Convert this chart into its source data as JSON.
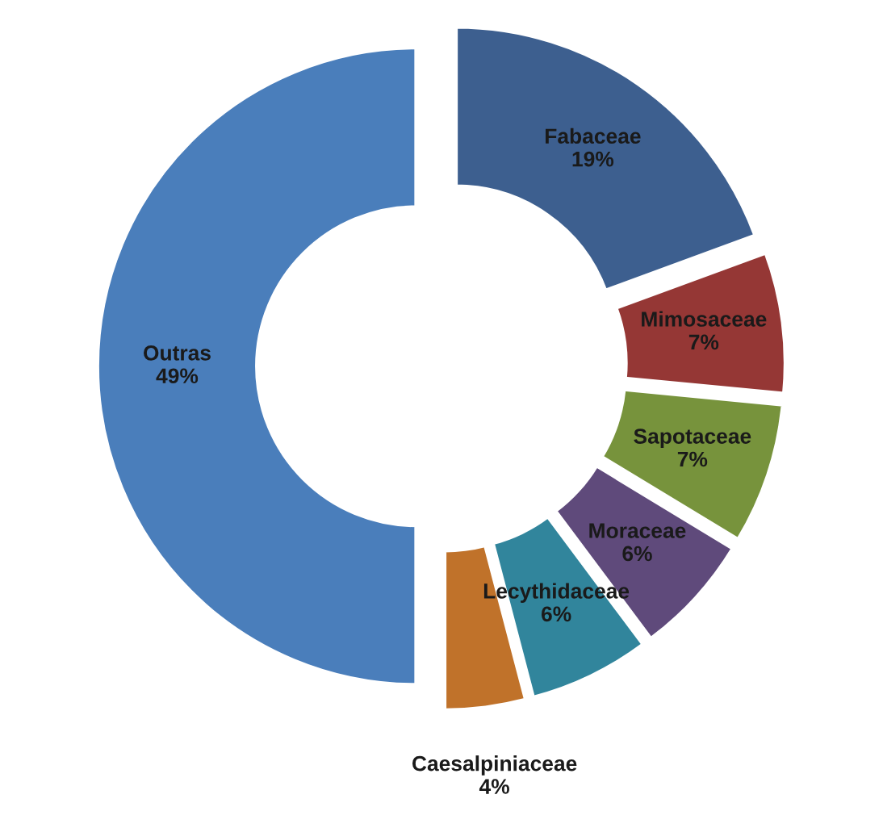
{
  "chart_data": {
    "type": "donut",
    "categories": [
      "Fabaceae",
      "Mimosaceae",
      "Sapotaceae",
      "Moraceae",
      "Lecythidaceae",
      "Caesalpiniaceae",
      "Outras"
    ],
    "values": [
      19,
      7,
      7,
      6,
      6,
      4,
      49
    ],
    "colors": [
      "#3d5f8f",
      "#953735",
      "#77933c",
      "#5f4a7b",
      "#31859c",
      "#c0722a",
      "#4a7ebb"
    ],
    "value_labels": [
      "19%",
      "7%",
      "7%",
      "6%",
      "6%",
      "4%",
      "49%"
    ]
  }
}
